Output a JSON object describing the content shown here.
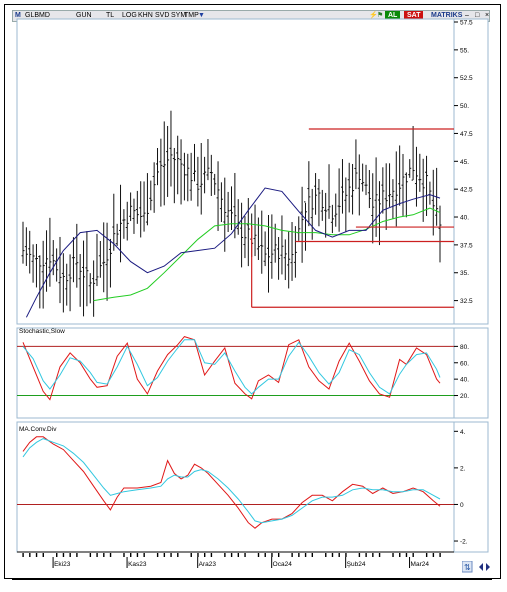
{
  "toolbar": {
    "symbol": "GLBMD",
    "items": [
      "GUN",
      "TL",
      "LOG",
      "KHN",
      "SVD",
      "SYM",
      "TMP"
    ],
    "badge_al": "AL",
    "badge_sat": "SAT",
    "matriks": "MATRIKS",
    "colors": {
      "al": "#0a8a0a",
      "sat": "#cc1010"
    }
  },
  "x_axis": {
    "month_labels": [
      "Eki23",
      "Kas23",
      "Ara23",
      "Oca24",
      "Şub24",
      "Mar24"
    ]
  },
  "chart_data": [
    {
      "type": "ohlc",
      "panel": "price",
      "y_ticks": [
        "57.5",
        "55.",
        "52.5",
        "50.",
        "47.5",
        "45.",
        "42.5",
        "40.",
        "37.5",
        "35.",
        "32.5"
      ],
      "ylim": [
        30.4,
        57.5
      ],
      "n_bars": 125,
      "ma_fast": {
        "color": "#1a1a80",
        "points": [
          [
            1,
            31.0
          ],
          [
            4,
            32.8
          ],
          [
            8,
            35.0
          ],
          [
            12,
            37.0
          ],
          [
            17,
            38.6
          ],
          [
            22,
            38.8
          ],
          [
            27,
            37.6
          ],
          [
            32,
            36.0
          ],
          [
            37,
            35.0
          ],
          [
            42,
            35.6
          ],
          [
            47,
            36.8
          ],
          [
            52,
            37.0
          ],
          [
            57,
            37.2
          ],
          [
            62,
            38.5
          ],
          [
            67,
            40.6
          ],
          [
            72,
            42.6
          ],
          [
            77,
            42.3
          ],
          [
            82,
            40.5
          ],
          [
            87,
            38.8
          ],
          [
            92,
            38.2
          ],
          [
            97,
            38.8
          ],
          [
            102,
            38.8
          ],
          [
            107,
            40.6
          ],
          [
            112,
            41.2
          ],
          [
            116,
            41.6
          ],
          [
            121,
            42.0
          ],
          [
            124,
            41.7
          ]
        ]
      },
      "ma_slow": {
        "color": "#22cc22",
        "points": [
          [
            21,
            32.5
          ],
          [
            27,
            32.8
          ],
          [
            32,
            33.0
          ],
          [
            37,
            33.6
          ],
          [
            42,
            35.0
          ],
          [
            47,
            36.5
          ],
          [
            52,
            38.0
          ],
          [
            57,
            39.2
          ],
          [
            62,
            39.4
          ],
          [
            67,
            39.4
          ],
          [
            72,
            39.2
          ],
          [
            77,
            38.8
          ],
          [
            82,
            38.6
          ],
          [
            87,
            38.6
          ],
          [
            92,
            38.4
          ],
          [
            97,
            38.4
          ],
          [
            102,
            38.9
          ],
          [
            107,
            39.6
          ],
          [
            112,
            40.0
          ],
          [
            116,
            40.2
          ],
          [
            121,
            40.8
          ],
          [
            124,
            40.4
          ]
        ]
      },
      "hlines": [
        {
          "value": 47.9,
          "from_bar": 85,
          "to_bar": 124,
          "color": "#cc2020"
        },
        {
          "value": 39.1,
          "from_bar": 99,
          "to_bar": 124,
          "color": "#cc2020"
        },
        {
          "value": 37.8,
          "from_bar": 81,
          "to_bar": 124,
          "color": "#cc2020"
        },
        {
          "value": 31.9,
          "from_bar": 68,
          "to_bar": 124,
          "color": "#cc2020"
        }
      ],
      "vlines": [
        {
          "bar": 68,
          "from": 31.9,
          "to": 39.2,
          "color": "#cc2020"
        }
      ],
      "close_path": [
        [
          0,
          37
        ],
        [
          4,
          36
        ],
        [
          8,
          36.5
        ],
        [
          12,
          34.5
        ],
        [
          16,
          36
        ],
        [
          20,
          34
        ],
        [
          24,
          36
        ],
        [
          28,
          39
        ],
        [
          32,
          40.5
        ],
        [
          36,
          40
        ],
        [
          40,
          44
        ],
        [
          44,
          45.5
        ],
        [
          48,
          44.5
        ],
        [
          52,
          43
        ],
        [
          56,
          44
        ],
        [
          60,
          41
        ],
        [
          64,
          39
        ],
        [
          68,
          38
        ],
        [
          72,
          36.5
        ],
        [
          76,
          37
        ],
        [
          80,
          36.5
        ],
        [
          84,
          41
        ],
        [
          88,
          42
        ],
        [
          92,
          40.5
        ],
        [
          96,
          42
        ],
        [
          100,
          44
        ],
        [
          104,
          41
        ],
        [
          108,
          42
        ],
        [
          112,
          43
        ],
        [
          116,
          44.5
        ],
        [
          120,
          43
        ],
        [
          124,
          39
        ]
      ]
    },
    {
      "type": "line",
      "panel": "stochastic",
      "title": "Stochastic,Slow",
      "y_ticks": [
        "80.",
        "60.",
        "40.",
        "20."
      ],
      "ylim": [
        -5,
        100
      ],
      "hlines": [
        80,
        20
      ],
      "series": [
        {
          "color": "#e01818",
          "points": [
            [
              0,
              85
            ],
            [
              3,
              55
            ],
            [
              6,
              25
            ],
            [
              8,
              15
            ],
            [
              11,
              55
            ],
            [
              14,
              72
            ],
            [
              17,
              60
            ],
            [
              20,
              40
            ],
            [
              22,
              30
            ],
            [
              25,
              32
            ],
            [
              28,
              68
            ],
            [
              31,
              84
            ],
            [
              34,
              40
            ],
            [
              37,
              22
            ],
            [
              40,
              50
            ],
            [
              43,
              70
            ],
            [
              46,
              82
            ],
            [
              48,
              92
            ],
            [
              51,
              88
            ],
            [
              54,
              45
            ],
            [
              57,
              62
            ],
            [
              60,
              78
            ],
            [
              63,
              35
            ],
            [
              66,
              22
            ],
            [
              68,
              16
            ],
            [
              70,
              38
            ],
            [
              73,
              45
            ],
            [
              76,
              36
            ],
            [
              79,
              82
            ],
            [
              82,
              88
            ],
            [
              85,
              55
            ],
            [
              88,
              38
            ],
            [
              91,
              28
            ],
            [
              94,
              62
            ],
            [
              97,
              84
            ],
            [
              100,
              62
            ],
            [
              103,
              38
            ],
            [
              106,
              22
            ],
            [
              109,
              18
            ],
            [
              112,
              64
            ],
            [
              114,
              58
            ],
            [
              117,
              78
            ],
            [
              120,
              70
            ],
            [
              123,
              40
            ],
            [
              124,
              35
            ]
          ]
        },
        {
          "color": "#33c8e0",
          "points": [
            [
              0,
              80
            ],
            [
              3,
              65
            ],
            [
              6,
              38
            ],
            [
              8,
              28
            ],
            [
              11,
              45
            ],
            [
              14,
              66
            ],
            [
              17,
              62
            ],
            [
              20,
              48
            ],
            [
              22,
              36
            ],
            [
              25,
              34
            ],
            [
              28,
              55
            ],
            [
              31,
              80
            ],
            [
              34,
              58
            ],
            [
              37,
              32
            ],
            [
              40,
              42
            ],
            [
              43,
              62
            ],
            [
              46,
              78
            ],
            [
              48,
              88
            ],
            [
              51,
              88
            ],
            [
              54,
              60
            ],
            [
              57,
              58
            ],
            [
              60,
              72
            ],
            [
              63,
              50
            ],
            [
              66,
              30
            ],
            [
              68,
              22
            ],
            [
              70,
              30
            ],
            [
              73,
              40
            ],
            [
              76,
              40
            ],
            [
              79,
              68
            ],
            [
              82,
              85
            ],
            [
              85,
              68
            ],
            [
              88,
              48
            ],
            [
              91,
              34
            ],
            [
              94,
              48
            ],
            [
              97,
              76
            ],
            [
              100,
              70
            ],
            [
              103,
              48
            ],
            [
              106,
              30
            ],
            [
              109,
              22
            ],
            [
              112,
              46
            ],
            [
              114,
              58
            ],
            [
              117,
              70
            ],
            [
              120,
              72
            ],
            [
              123,
              52
            ],
            [
              124,
              42
            ]
          ]
        }
      ]
    },
    {
      "type": "line",
      "panel": "macd",
      "title": "MA.Conv.Div",
      "y_ticks": [
        "4.",
        "2.",
        "0",
        "-2."
      ],
      "ylim": [
        -2.6,
        4.4
      ],
      "hlines": [
        0
      ],
      "series": [
        {
          "color": "#e01818",
          "points": [
            [
              0,
              2.9
            ],
            [
              2,
              3.4
            ],
            [
              4,
              3.7
            ],
            [
              6,
              3.7
            ],
            [
              9,
              3.3
            ],
            [
              12,
              3.0
            ],
            [
              15,
              2.4
            ],
            [
              18,
              1.8
            ],
            [
              21,
              1.0
            ],
            [
              24,
              0.2
            ],
            [
              26,
              -0.3
            ],
            [
              28,
              0.4
            ],
            [
              30,
              0.9
            ],
            [
              34,
              0.9
            ],
            [
              38,
              1.0
            ],
            [
              41,
              1.2
            ],
            [
              43,
              2.4
            ],
            [
              45,
              1.7
            ],
            [
              47,
              1.4
            ],
            [
              49,
              1.6
            ],
            [
              51,
              2.2
            ],
            [
              53,
              2.0
            ],
            [
              55,
              1.7
            ],
            [
              58,
              1.1
            ],
            [
              61,
              0.5
            ],
            [
              64,
              -0.2
            ],
            [
              67,
              -1.0
            ],
            [
              69,
              -1.3
            ],
            [
              71,
              -1.0
            ],
            [
              74,
              -0.8
            ],
            [
              77,
              -0.8
            ],
            [
              80,
              -0.5
            ],
            [
              83,
              0.1
            ],
            [
              86,
              0.5
            ],
            [
              89,
              0.5
            ],
            [
              92,
              0.2
            ],
            [
              95,
              0.7
            ],
            [
              98,
              1.1
            ],
            [
              101,
              1.0
            ],
            [
              104,
              0.6
            ],
            [
              107,
              0.9
            ],
            [
              110,
              0.6
            ],
            [
              113,
              0.7
            ],
            [
              116,
              0.9
            ],
            [
              119,
              0.7
            ],
            [
              122,
              0.2
            ],
            [
              124,
              -0.1
            ]
          ]
        },
        {
          "color": "#33c8e0",
          "points": [
            [
              0,
              2.6
            ],
            [
              2,
              3.1
            ],
            [
              4,
              3.4
            ],
            [
              6,
              3.6
            ],
            [
              9,
              3.4
            ],
            [
              12,
              3.2
            ],
            [
              15,
              2.8
            ],
            [
              18,
              2.3
            ],
            [
              21,
              1.6
            ],
            [
              24,
              0.9
            ],
            [
              26,
              0.5
            ],
            [
              28,
              0.6
            ],
            [
              30,
              0.7
            ],
            [
              34,
              0.8
            ],
            [
              38,
              0.9
            ],
            [
              41,
              1.0
            ],
            [
              43,
              1.4
            ],
            [
              45,
              1.6
            ],
            [
              47,
              1.5
            ],
            [
              49,
              1.5
            ],
            [
              51,
              1.8
            ],
            [
              53,
              1.9
            ],
            [
              55,
              1.8
            ],
            [
              58,
              1.4
            ],
            [
              61,
              0.9
            ],
            [
              64,
              0.3
            ],
            [
              67,
              -0.4
            ],
            [
              69,
              -0.9
            ],
            [
              71,
              -1.0
            ],
            [
              74,
              -0.9
            ],
            [
              77,
              -0.8
            ],
            [
              80,
              -0.6
            ],
            [
              83,
              -0.2
            ],
            [
              86,
              0.2
            ],
            [
              89,
              0.4
            ],
            [
              92,
              0.4
            ],
            [
              95,
              0.5
            ],
            [
              98,
              0.8
            ],
            [
              101,
              0.9
            ],
            [
              104,
              0.8
            ],
            [
              107,
              0.8
            ],
            [
              110,
              0.7
            ],
            [
              113,
              0.7
            ],
            [
              116,
              0.8
            ],
            [
              119,
              0.8
            ],
            [
              122,
              0.5
            ],
            [
              124,
              0.3
            ]
          ]
        }
      ]
    }
  ]
}
